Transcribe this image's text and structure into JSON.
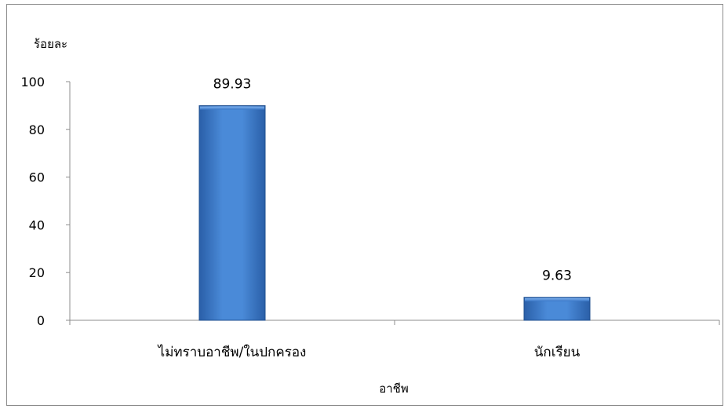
{
  "chart_data": {
    "type": "bar",
    "title": "",
    "ylabel": "ร้อยละ",
    "xlabel": "อาชีพ",
    "categories": [
      "ไม่ทราบอาชีพ/ในปกครอง",
      "นักเรียน"
    ],
    "values": [
      89.93,
      9.63
    ],
    "value_labels": [
      "89.93",
      "9.63"
    ],
    "ylim": [
      0,
      100
    ],
    "yticks": [
      0,
      20,
      40,
      60,
      80,
      100
    ],
    "ytick_labels": [
      "0",
      "20",
      "40",
      "60",
      "80",
      "100"
    ],
    "grid": false,
    "legend": "none",
    "bar_color": "#3a78c8",
    "bar_edge_color": "#1f4f8f"
  }
}
